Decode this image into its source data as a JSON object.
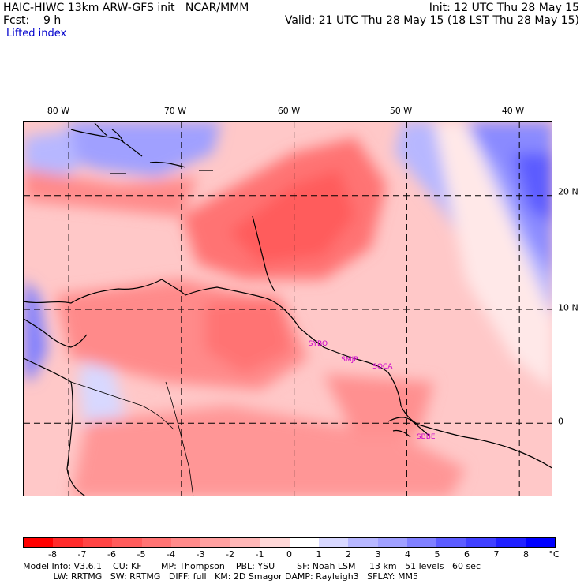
{
  "header": {
    "model_title": "HAIC-HIWC 13km ARW-GFS init   NCAR/MMM",
    "fcst_label": "Fcst:    9 h",
    "field_name": "Lifted index",
    "init_time": "Init: 12 UTC Thu 28 May 15",
    "valid_time": "Valid: 21 UTC Thu 28 May 15 (18 LST Thu 28 May 15)"
  },
  "map": {
    "lon_labels": [
      "80 W",
      "70 W",
      "60 W",
      "50 W",
      "40 W"
    ],
    "lon_values": [
      -80,
      -70,
      -60,
      -50,
      -40
    ],
    "lat_labels": [
      "20 N",
      "10 N",
      "0"
    ],
    "lat_values": [
      20,
      10,
      0
    ],
    "extent": {
      "lon_min": -84,
      "lon_max": -37,
      "lat_min": -6.5,
      "lat_max": 26.5
    },
    "stations": [
      {
        "label": "SYBO",
        "lon": -58.1,
        "lat": 6.8
      },
      {
        "label": "SMJP",
        "lon": -55.2,
        "lat": 5.4
      },
      {
        "label": "SOCA",
        "lon": -52.4,
        "lat": 4.8
      },
      {
        "label": "SBBE",
        "lon": -48.5,
        "lat": -1.4
      }
    ],
    "colors": {
      "land_outline": "#000000",
      "grid": "#000000",
      "station": "#cc00cc"
    }
  },
  "colorbar": {
    "unit": "°C",
    "ticks": [
      "-8",
      "-7",
      "-6",
      "-5",
      "-4",
      "-3",
      "-2",
      "-1",
      "0",
      "1",
      "2",
      "3",
      "4",
      "5",
      "6",
      "7",
      "8"
    ],
    "colors": [
      "#ff0000",
      "#ff2b2b",
      "#ff4444",
      "#ff5c5c",
      "#ff7373",
      "#ff8a8a",
      "#ffa0a0",
      "#ffb7b7",
      "#ffd8d8",
      "#ffffff",
      "#d8d8ff",
      "#b7b7ff",
      "#a0a0ff",
      "#8080ff",
      "#5c5cff",
      "#4040ff",
      "#2020ff",
      "#0000ff"
    ]
  },
  "model_info": {
    "line1": "Model Info: V3.6.1    CU: KF       MP: Thompson    PBL: YSU        SF: Noah LSM     13 km   51 levels   60 sec",
    "line2": "           LW: RRTMG   SW: RRTMG   DIFF: full   KM: 2D Smagor DAMP: Rayleigh3   SFLAY: MM5"
  }
}
